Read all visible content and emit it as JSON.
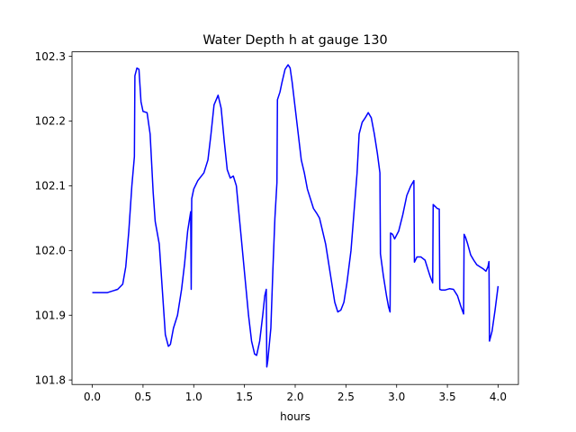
{
  "chart_data": {
    "type": "line",
    "title": "Water Depth h at gauge 130",
    "xlabel": "hours",
    "ylabel": "",
    "xlim": [
      -0.2,
      4.2
    ],
    "ylim": [
      101.793,
      102.307
    ],
    "x_ticks": [
      "0.0",
      "0.5",
      "1.0",
      "1.5",
      "2.0",
      "2.5",
      "3.0",
      "3.5",
      "4.0"
    ],
    "y_ticks": [
      "101.8",
      "101.9",
      "102.0",
      "102.1",
      "102.2",
      "102.3"
    ],
    "grid": false,
    "legend": "none",
    "series": [
      {
        "color": "#0000ff",
        "points": [
          [
            0.0,
            101.935
          ],
          [
            0.15,
            101.935
          ],
          [
            0.25,
            101.94
          ],
          [
            0.3,
            101.948
          ],
          [
            0.33,
            101.975
          ],
          [
            0.36,
            102.03
          ],
          [
            0.39,
            102.1
          ],
          [
            0.415,
            102.145
          ],
          [
            0.42,
            102.27
          ],
          [
            0.44,
            102.282
          ],
          [
            0.46,
            102.28
          ],
          [
            0.48,
            102.23
          ],
          [
            0.5,
            102.215
          ],
          [
            0.54,
            102.213
          ],
          [
            0.57,
            102.18
          ],
          [
            0.6,
            102.09
          ],
          [
            0.62,
            102.045
          ],
          [
            0.66,
            102.01
          ],
          [
            0.69,
            101.94
          ],
          [
            0.72,
            101.87
          ],
          [
            0.75,
            101.852
          ],
          [
            0.77,
            101.855
          ],
          [
            0.8,
            101.88
          ],
          [
            0.84,
            101.9
          ],
          [
            0.88,
            101.94
          ],
          [
            0.91,
            101.98
          ],
          [
            0.94,
            102.03
          ],
          [
            0.97,
            102.06
          ],
          [
            0.975,
            101.94
          ],
          [
            0.98,
            102.08
          ],
          [
            1.0,
            102.095
          ],
          [
            1.04,
            102.108
          ],
          [
            1.1,
            102.12
          ],
          [
            1.14,
            102.14
          ],
          [
            1.17,
            102.18
          ],
          [
            1.2,
            102.225
          ],
          [
            1.24,
            102.24
          ],
          [
            1.27,
            102.22
          ],
          [
            1.3,
            102.17
          ],
          [
            1.33,
            102.125
          ],
          [
            1.36,
            102.112
          ],
          [
            1.39,
            102.115
          ],
          [
            1.42,
            102.1
          ],
          [
            1.45,
            102.05
          ],
          [
            1.48,
            102.0
          ],
          [
            1.51,
            101.95
          ],
          [
            1.54,
            101.9
          ],
          [
            1.57,
            101.86
          ],
          [
            1.6,
            101.84
          ],
          [
            1.62,
            101.838
          ],
          [
            1.65,
            101.86
          ],
          [
            1.68,
            101.9
          ],
          [
            1.7,
            101.93
          ],
          [
            1.715,
            101.94
          ],
          [
            1.72,
            101.82
          ],
          [
            1.73,
            101.83
          ],
          [
            1.76,
            101.88
          ],
          [
            1.78,
            101.97
          ],
          [
            1.8,
            102.05
          ],
          [
            1.82,
            102.105
          ],
          [
            1.825,
            102.233
          ],
          [
            1.85,
            102.245
          ],
          [
            1.87,
            102.26
          ],
          [
            1.9,
            102.28
          ],
          [
            1.93,
            102.287
          ],
          [
            1.95,
            102.282
          ],
          [
            1.97,
            102.26
          ],
          [
            2.0,
            102.22
          ],
          [
            2.03,
            102.18
          ],
          [
            2.06,
            102.14
          ],
          [
            2.09,
            102.12
          ],
          [
            2.12,
            102.095
          ],
          [
            2.15,
            102.08
          ],
          [
            2.18,
            102.065
          ],
          [
            2.21,
            102.058
          ],
          [
            2.24,
            102.05
          ],
          [
            2.27,
            102.03
          ],
          [
            2.3,
            102.01
          ],
          [
            2.33,
            101.98
          ],
          [
            2.36,
            101.95
          ],
          [
            2.39,
            101.92
          ],
          [
            2.42,
            101.905
          ],
          [
            2.45,
            101.908
          ],
          [
            2.48,
            101.92
          ],
          [
            2.51,
            101.95
          ],
          [
            2.55,
            102.0
          ],
          [
            2.58,
            102.06
          ],
          [
            2.61,
            102.12
          ],
          [
            2.63,
            102.18
          ],
          [
            2.66,
            102.198
          ],
          [
            2.69,
            102.205
          ],
          [
            2.72,
            102.213
          ],
          [
            2.75,
            102.205
          ],
          [
            2.78,
            102.18
          ],
          [
            2.81,
            102.15
          ],
          [
            2.835,
            102.12
          ],
          [
            2.84,
            101.995
          ],
          [
            2.87,
            101.96
          ],
          [
            2.9,
            101.93
          ],
          [
            2.92,
            101.913
          ],
          [
            2.935,
            101.905
          ],
          [
            2.94,
            102.027
          ],
          [
            2.96,
            102.025
          ],
          [
            2.98,
            102.018
          ],
          [
            3.02,
            102.03
          ],
          [
            3.06,
            102.055
          ],
          [
            3.1,
            102.085
          ],
          [
            3.14,
            102.1
          ],
          [
            3.17,
            102.108
          ],
          [
            3.175,
            101.982
          ],
          [
            3.2,
            101.99
          ],
          [
            3.24,
            101.99
          ],
          [
            3.28,
            101.985
          ],
          [
            3.31,
            101.97
          ],
          [
            3.33,
            101.96
          ],
          [
            3.355,
            101.95
          ],
          [
            3.36,
            102.071
          ],
          [
            3.38,
            102.068
          ],
          [
            3.4,
            102.065
          ],
          [
            3.42,
            102.064
          ],
          [
            3.425,
            101.94
          ],
          [
            3.44,
            101.939
          ],
          [
            3.48,
            101.939
          ],
          [
            3.52,
            101.941
          ],
          [
            3.56,
            101.94
          ],
          [
            3.6,
            101.93
          ],
          [
            3.63,
            101.915
          ],
          [
            3.66,
            101.902
          ],
          [
            3.665,
            102.025
          ],
          [
            3.68,
            102.02
          ],
          [
            3.7,
            102.01
          ],
          [
            3.73,
            101.993
          ],
          [
            3.76,
            101.985
          ],
          [
            3.79,
            101.978
          ],
          [
            3.82,
            101.975
          ],
          [
            3.85,
            101.972
          ],
          [
            3.88,
            101.968
          ],
          [
            3.9,
            101.975
          ],
          [
            3.91,
            101.983
          ],
          [
            3.915,
            101.86
          ],
          [
            3.94,
            101.875
          ],
          [
            3.97,
            101.908
          ],
          [
            4.0,
            101.945
          ]
        ]
      }
    ]
  }
}
